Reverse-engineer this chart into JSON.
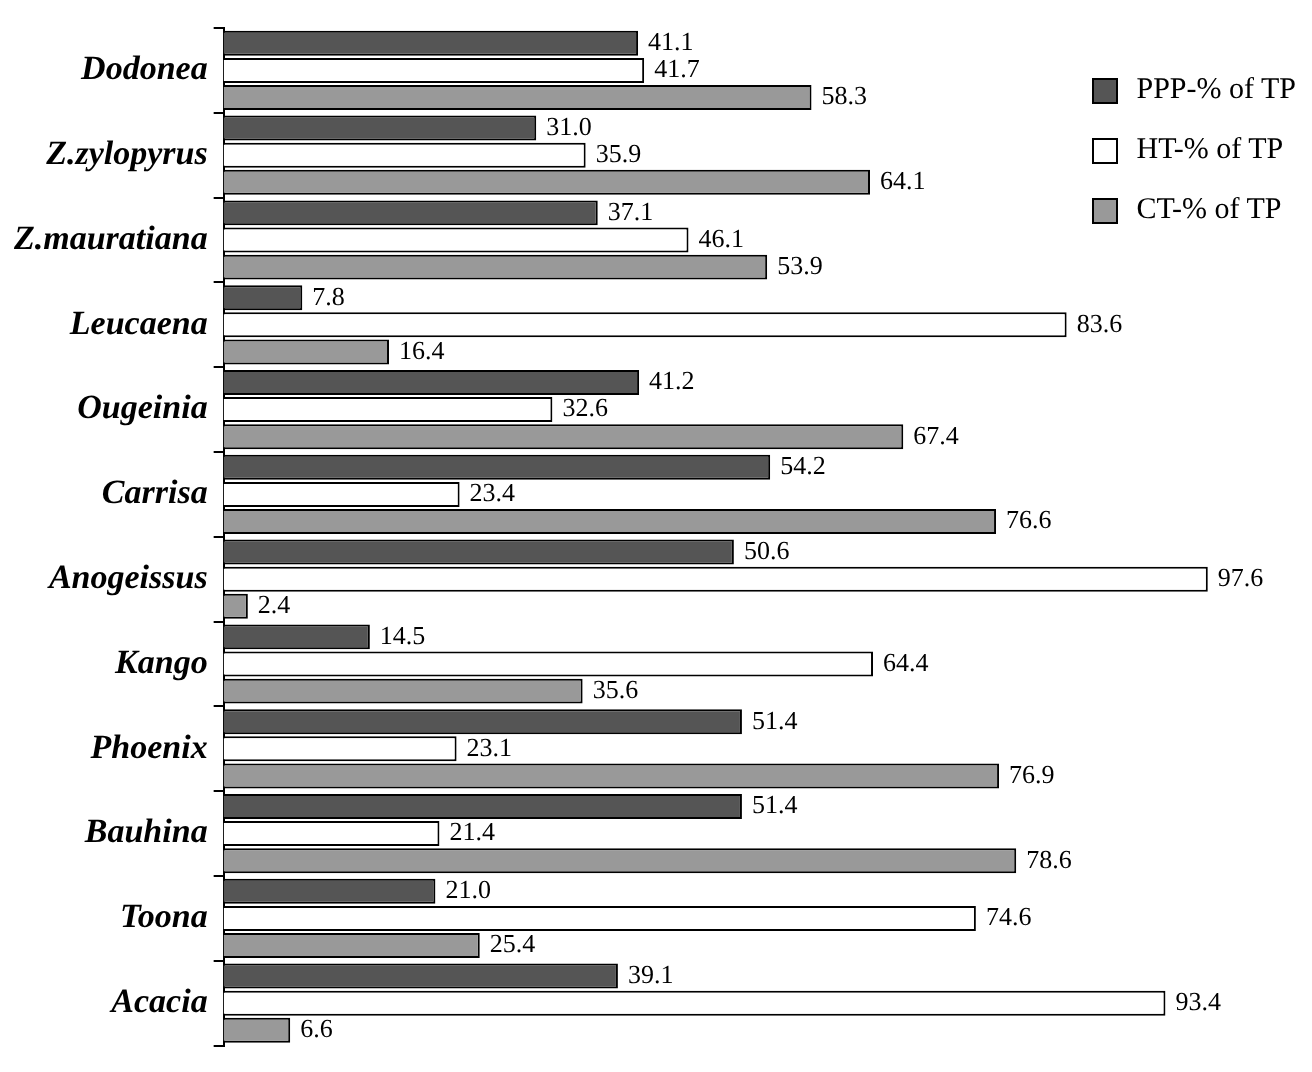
{
  "chart_data": {
    "type": "bar",
    "orientation": "horizontal",
    "legend": "top right",
    "grid": false,
    "categories": [
      "Dodonea",
      "Z.zylopyrus",
      "Z.mauratiana",
      "Leucaena",
      "Ougeinia",
      "Carrisa",
      "Anogeissus",
      "Kango",
      "Phoenix",
      "Bauhina",
      "Toona",
      "Acacia"
    ],
    "series": [
      {
        "name": "PPP-% of TP",
        "color": "#555555",
        "values": [
          41.1,
          31.0,
          37.1,
          7.8,
          41.2,
          54.2,
          50.6,
          14.5,
          51.4,
          51.4,
          21.0,
          39.1
        ],
        "value_labels": [
          "41.1",
          "31.0",
          "37.1",
          "7.8",
          "41.2",
          "54.2",
          "50.6",
          "14.5",
          "51.4",
          "51.4",
          "21.0",
          "39.1"
        ]
      },
      {
        "name": "HT-% of TP",
        "color": "#ffffff",
        "values": [
          41.7,
          35.9,
          46.1,
          83.6,
          32.6,
          23.4,
          97.6,
          64.4,
          23.1,
          21.4,
          74.6,
          93.4
        ],
        "value_labels": [
          "41.7",
          "35.9",
          "46.1",
          "83.6",
          "32.6",
          "23.4",
          "97.6",
          "64.4",
          "23.1",
          "21.4",
          "74.6",
          "93.4"
        ]
      },
      {
        "name": "CT-% of TP",
        "color": "#999999",
        "values": [
          58.3,
          64.1,
          53.9,
          16.4,
          67.4,
          76.6,
          2.4,
          35.6,
          76.9,
          78.6,
          25.4,
          6.6
        ],
        "value_labels": [
          "58.3",
          "64.1",
          "53.9",
          "16.4",
          "67.4",
          "76.6",
          "2.4",
          "35.6",
          "76.9",
          "78.6",
          "25.4",
          "6.6"
        ]
      }
    ]
  }
}
